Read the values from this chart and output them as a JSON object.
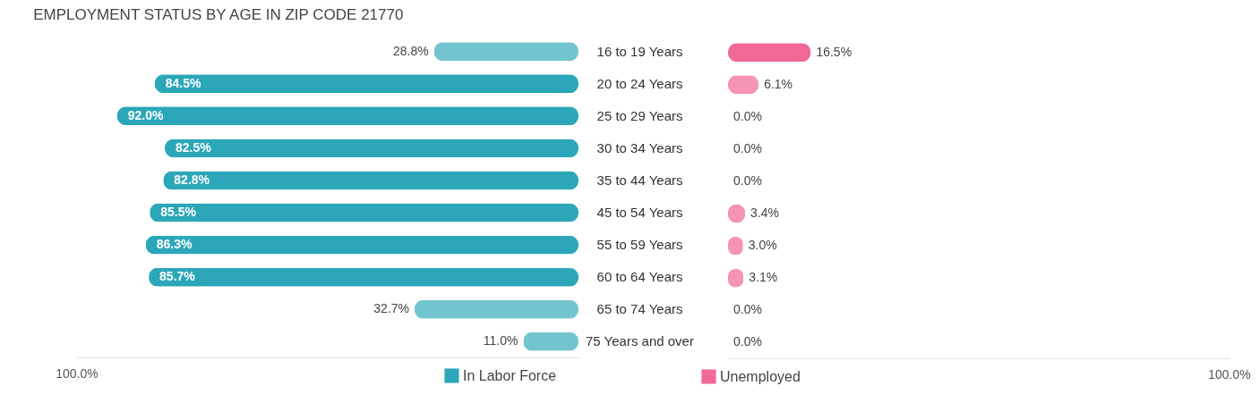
{
  "chart_data": [
    {
      "type": "bar",
      "orientation": "horizontal",
      "title": "EMPLOYMENT STATUS BY AGE IN ZIP CODE 21770",
      "categories": [
        "16 to 19 Years",
        "20 to 24 Years",
        "25 to 29 Years",
        "30 to 34 Years",
        "35 to 44 Years",
        "45 to 54 Years",
        "55 to 59 Years",
        "60 to 64 Years",
        "65 to 74 Years",
        "75 Years and over"
      ],
      "series": [
        {
          "name": "In Labor Force",
          "color": "#2ba7b9",
          "colors": [
            "#72c5cf",
            "#2ba7b9",
            "#2ba7b9",
            "#2ba7b9",
            "#2ba7b9",
            "#2ba7b9",
            "#2ba7b9",
            "#2ba7b9",
            "#72c5cf",
            "#72c5cf"
          ],
          "values": [
            28.8,
            84.5,
            92.0,
            82.5,
            82.8,
            85.5,
            86.3,
            85.7,
            32.7,
            11.0
          ],
          "value_labels": [
            "28.8%",
            "84.5%",
            "92.0%",
            "82.5%",
            "82.8%",
            "85.5%",
            "86.3%",
            "85.7%",
            "32.7%",
            "11.0%"
          ]
        }
      ],
      "xlim": [
        100,
        0
      ],
      "annotations": [
        "100.0%"
      ],
      "legend": "bottom right"
    },
    {
      "type": "bar",
      "orientation": "horizontal",
      "categories": [
        null,
        null,
        null,
        null,
        null,
        null,
        null,
        null,
        null,
        null
      ],
      "series": [
        {
          "name": "Unemployed",
          "color": "#f06a95",
          "colors": [
            "#f06a95",
            "#f594b5",
            "#f8b3c8",
            "#f8b3c8",
            "#f8b3c8",
            "#f594b5",
            "#f594b5",
            "#f594b5",
            "#f8b3c8",
            "#f8b3c8"
          ],
          "values": [
            16.5,
            6.1,
            0.0,
            0.0,
            0.0,
            3.4,
            3.0,
            3.1,
            0.0,
            0.0
          ],
          "value_labels": [
            "16.5%",
            "6.1%",
            "0.0%",
            "0.0%",
            "0.0%",
            "3.4%",
            "3.0%",
            "3.1%",
            "0.0%",
            "0.0%"
          ]
        }
      ],
      "xlim": [
        0,
        100
      ],
      "annotations": [
        "100.0%"
      ],
      "legend": "bottom left"
    }
  ]
}
